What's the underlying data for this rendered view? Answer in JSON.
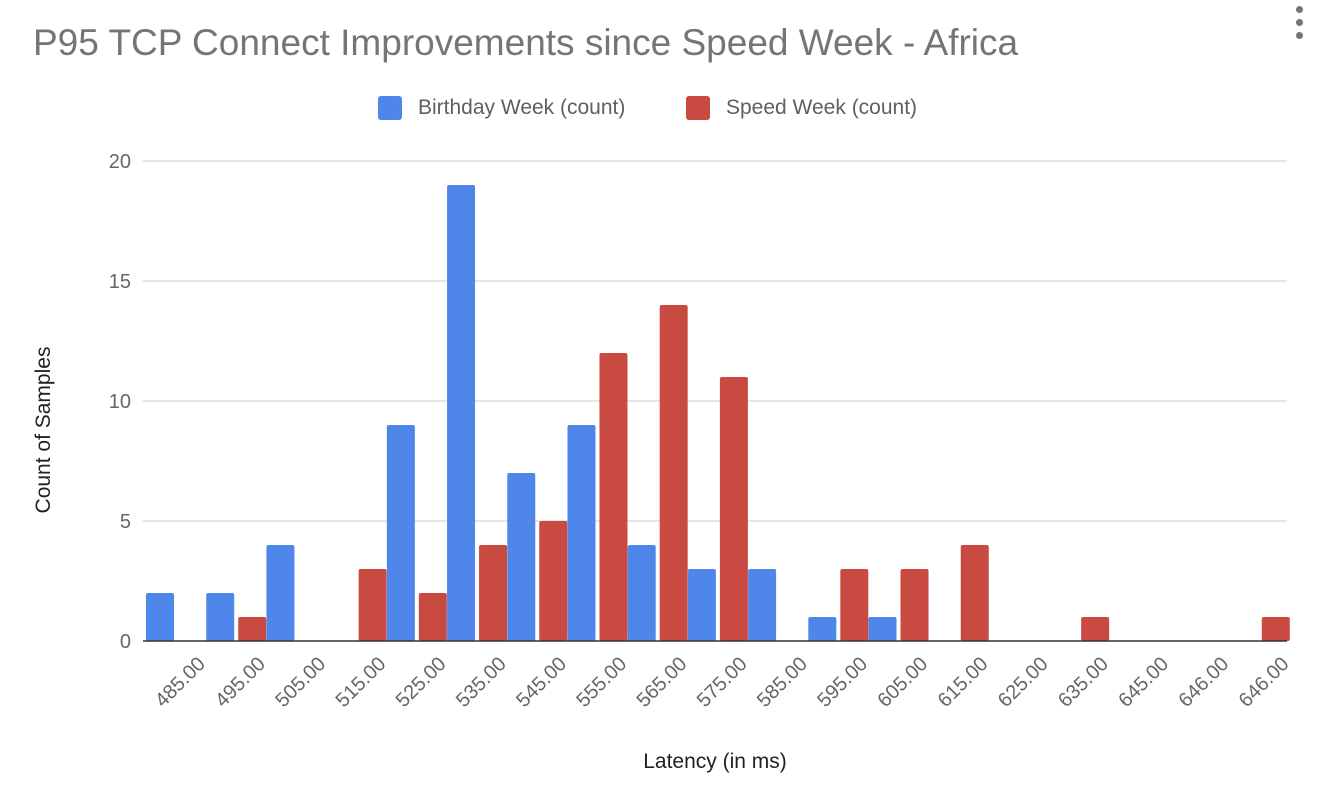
{
  "chart": {
    "title": "P95 TCP Connect Improvements since Speed Week - Africa",
    "menu_icon": "vertical-ellipsis-icon"
  },
  "chart_data": {
    "type": "bar",
    "title": "P95 TCP Connect Improvements since Speed Week - Africa",
    "xlabel": "Latency (in ms)",
    "ylabel": "Count of Samples",
    "ylim": [
      0,
      20
    ],
    "yticks": [
      0,
      5,
      10,
      15,
      20
    ],
    "grid": true,
    "legend_position": "top",
    "categories": [
      "485.00",
      "495.00",
      "505.00",
      "515.00",
      "525.00",
      "535.00",
      "545.00",
      "555.00",
      "565.00",
      "575.00",
      "585.00",
      "595.00",
      "605.00",
      "615.00",
      "625.00",
      "635.00",
      "645.00",
      "646.00",
      "646.00"
    ],
    "series": [
      {
        "name": "Birthday Week (count)",
        "color": "#4e86ea",
        "values": [
          2,
          2,
          4,
          0,
          9,
          19,
          7,
          9,
          4,
          3,
          3,
          1,
          1,
          0,
          0,
          0,
          0,
          0,
          0
        ]
      },
      {
        "name": "Speed Week (count)",
        "color": "#c94a40",
        "values": [
          0,
          1,
          0,
          3,
          2,
          4,
          5,
          12,
          14,
          11,
          0,
          3,
          3,
          4,
          0,
          1,
          0,
          0,
          1
        ]
      }
    ]
  }
}
